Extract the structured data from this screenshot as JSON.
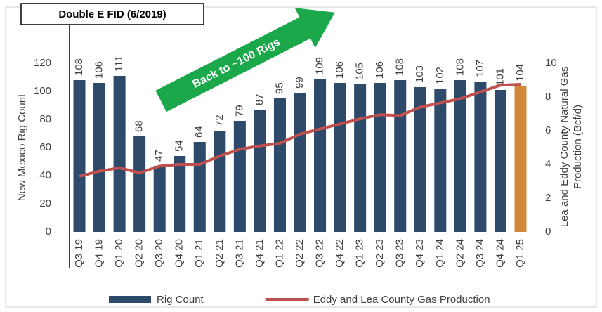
{
  "chart_data": {
    "type": "bar",
    "categories": [
      "Q3 19",
      "Q4 19",
      "Q1 20",
      "Q2 20",
      "Q3 20",
      "Q4 20",
      "Q1 21",
      "Q2 21",
      "Q3 21",
      "Q4 21",
      "Q1 22",
      "Q2 22",
      "Q3 22",
      "Q4 22",
      "Q1 23",
      "Q2 23",
      "Q3 23",
      "Q4 23",
      "Q1 24",
      "Q2 24",
      "Q3 24",
      "Q4 24",
      "Q1 25"
    ],
    "series": [
      {
        "name": "Rig Count",
        "type": "bar",
        "color": "#2e4a6b",
        "colors": [
          "#2e4a6b",
          "#2e4a6b",
          "#2e4a6b",
          "#2e4a6b",
          "#2e4a6b",
          "#2e4a6b",
          "#2e4a6b",
          "#2e4a6b",
          "#2e4a6b",
          "#2e4a6b",
          "#2e4a6b",
          "#2e4a6b",
          "#2e4a6b",
          "#2e4a6b",
          "#2e4a6b",
          "#2e4a6b",
          "#2e4a6b",
          "#2e4a6b",
          "#2e4a6b",
          "#2e4a6b",
          "#2e4a6b",
          "#2e4a6b",
          "#d0883a"
        ],
        "values": [
          108,
          106,
          111,
          68,
          47,
          54,
          64,
          72,
          79,
          87,
          95,
          99,
          109,
          106,
          105,
          106,
          108,
          103,
          102,
          108,
          107,
          101,
          104
        ]
      },
      {
        "name": "Eddy and Lea County Gas Production",
        "type": "line",
        "axis": "y2",
        "color": "#c0504d",
        "values": [
          3.3,
          3.6,
          3.8,
          3.5,
          3.9,
          4.0,
          4.0,
          4.5,
          4.9,
          5.1,
          5.25,
          5.8,
          6.1,
          6.4,
          6.7,
          6.95,
          6.9,
          7.4,
          7.65,
          7.9,
          8.3,
          8.7,
          8.75
        ]
      }
    ],
    "ylabel": "New Mexico Rig Count",
    "y2label": "Lea and Eddy County Natural Gas Production (Bcf/d)",
    "ylim": [
      0,
      120
    ],
    "yticks": [
      0,
      20,
      40,
      60,
      80,
      100,
      120
    ],
    "y2lim": [
      0,
      10
    ],
    "y2ticks": [
      0,
      2,
      4,
      6,
      8,
      10
    ],
    "annotations": [
      "Double E FID (6/2019)",
      "Back to ~100 Rigs"
    ],
    "legend": "bottom"
  }
}
